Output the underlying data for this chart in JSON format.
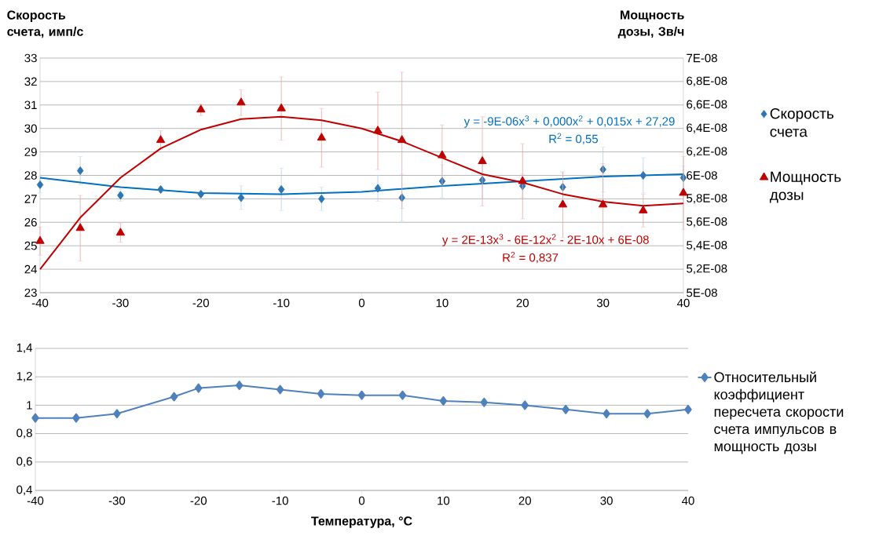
{
  "chart_data": [
    {
      "type": "scatter",
      "ylabel": "Скорость счета, имп/с",
      "y2label": "Мощность дозы, Зв/ч",
      "x": [
        -40,
        -35,
        -30,
        -25,
        -20,
        -15,
        -10,
        -5,
        2,
        5,
        10,
        15,
        20,
        25,
        30,
        35,
        40
      ],
      "series": [
        {
          "name": "Скорость счета",
          "color": "#2e75b6",
          "marker": "diamond",
          "values": [
            27.6,
            28.2,
            27.15,
            27.4,
            27.2,
            27.05,
            27.4,
            27.0,
            27.45,
            27.05,
            27.75,
            27.8,
            27.55,
            27.5,
            28.25,
            28.0,
            27.9
          ],
          "errors": [
            0.35,
            0.6,
            0.25,
            0.1,
            0.1,
            0.5,
            0.9,
            0.5,
            0.55,
            1.0,
            0.7,
            0.8,
            0.5,
            0.6,
            0.95,
            0.75,
            0.5
          ]
        },
        {
          "name": "Мощность дозы",
          "color": "#c00000",
          "marker": "triangle",
          "axis": "y2",
          "values": [
            5.44e-08,
            5.55e-08,
            5.51e-08,
            6.3e-08,
            6.56e-08,
            6.62e-08,
            6.57e-08,
            6.32e-08,
            6.38e-08,
            6.3e-08,
            6.17e-08,
            6.12e-08,
            5.95e-08,
            5.75e-08,
            5.75e-08,
            5.7e-08,
            5.85e-08
          ],
          "errors": [
            1.2e-09,
            2.8e-09,
            8e-10,
            8e-10,
            5e-10,
            1.1e-09,
            2.7e-09,
            2.5e-09,
            3.3e-09,
            5.8e-09,
            2.6e-09,
            3.8e-09,
            3.2e-09,
            2.8e-09,
            3.5e-09,
            1.4e-09,
            3.1e-09
          ]
        },
        {
          "type": "line",
          "color": "#0070c0",
          "x": [
            -40,
            -30,
            -20,
            -10,
            0,
            10,
            20,
            30,
            40
          ],
          "values": [
            27.9,
            27.5,
            27.25,
            27.2,
            27.3,
            27.55,
            27.75,
            27.95,
            28.05
          ]
        },
        {
          "type": "line",
          "color": "#c00000",
          "axis": "y2",
          "x": [
            -40,
            -35,
            -30,
            -25,
            -20,
            -15,
            -10,
            -5,
            0,
            5,
            10,
            15,
            20,
            25,
            30,
            35,
            40
          ],
          "values": [
            5.2e-08,
            5.64e-08,
            5.98e-08,
            6.23e-08,
            6.39e-08,
            6.48e-08,
            6.5e-08,
            6.47e-08,
            6.4e-08,
            6.29e-08,
            6.15e-08,
            6.01e-08,
            5.94e-08,
            5.84e-08,
            5.776e-08,
            5.74e-08,
            5.76e-08
          ]
        }
      ],
      "xlim": [
        -40,
        40
      ],
      "xticks": [
        -40,
        -30,
        -20,
        -10,
        0,
        10,
        20,
        30,
        40
      ],
      "ylim": [
        23,
        33
      ],
      "yticks": [
        23,
        24,
        25,
        26,
        27,
        28,
        29,
        30,
        31,
        32,
        33
      ],
      "y2lim": [
        5e-08,
        7e-08
      ],
      "y2ticks": [
        {
          "value": 5e-08,
          "label": "5E-08"
        },
        {
          "value": 5.2e-08,
          "label": "5,2E-08"
        },
        {
          "value": 5.4e-08,
          "label": "5,4E-08"
        },
        {
          "value": 5.6e-08,
          "label": "5,6E-08"
        },
        {
          "value": 5.8e-08,
          "label": "5,8E-08"
        },
        {
          "value": 6e-08,
          "label": "6E-08"
        },
        {
          "value": 6.2e-08,
          "label": "6,2E-08"
        },
        {
          "value": 6.4e-08,
          "label": "6,4E-08"
        },
        {
          "value": 6.6e-08,
          "label": "6,6E-08"
        },
        {
          "value": 6.8e-08,
          "label": "6,8E-08"
        },
        {
          "value": 7e-08,
          "label": "7E-08"
        }
      ],
      "annotations": [
        "y = -9E-06x$^{3}$ + 0,000x$^{2}$ + 0,015x + 27,29",
        "R$^{2}$ = 0,55",
        "y = 2E-13x$^{3}$ - 6E-12x$^{2}$ - 2E-10x + 6E-08",
        "R$^{2}$ = 0,837"
      ],
      "grid": "y",
      "legend": "right"
    },
    {
      "type": "line",
      "xlabel": "Температура, °C",
      "x": [
        -40,
        -35,
        -30,
        -23,
        -20,
        -15,
        -10,
        -5,
        0,
        5,
        10,
        15,
        20,
        25,
        30,
        35,
        40
      ],
      "series": [
        {
          "name": "Относительный коэффициент пересчета скорости счета импульсов в мощность дозы",
          "color": "#4f81bd",
          "marker": "diamond",
          "values": [
            0.91,
            0.91,
            0.94,
            1.06,
            1.12,
            1.14,
            1.11,
            1.08,
            1.07,
            1.07,
            1.03,
            1.02,
            1.0,
            0.97,
            0.94,
            0.94,
            0.97
          ]
        }
      ],
      "xlim": [
        -40,
        40
      ],
      "xticks": [
        -40,
        -30,
        -20,
        -10,
        0,
        10,
        20,
        30,
        40
      ],
      "ylim": [
        0.4,
        1.4
      ],
      "yticks": [
        {
          "value": 0.4,
          "label": "0,4"
        },
        {
          "value": 0.6,
          "label": "0,6"
        },
        {
          "value": 0.8,
          "label": "0,8"
        },
        1,
        {
          "value": 1.2,
          "label": "1,2"
        },
        {
          "value": 1.4,
          "label": "1,4"
        }
      ],
      "grid": "y",
      "legend": "right"
    }
  ]
}
